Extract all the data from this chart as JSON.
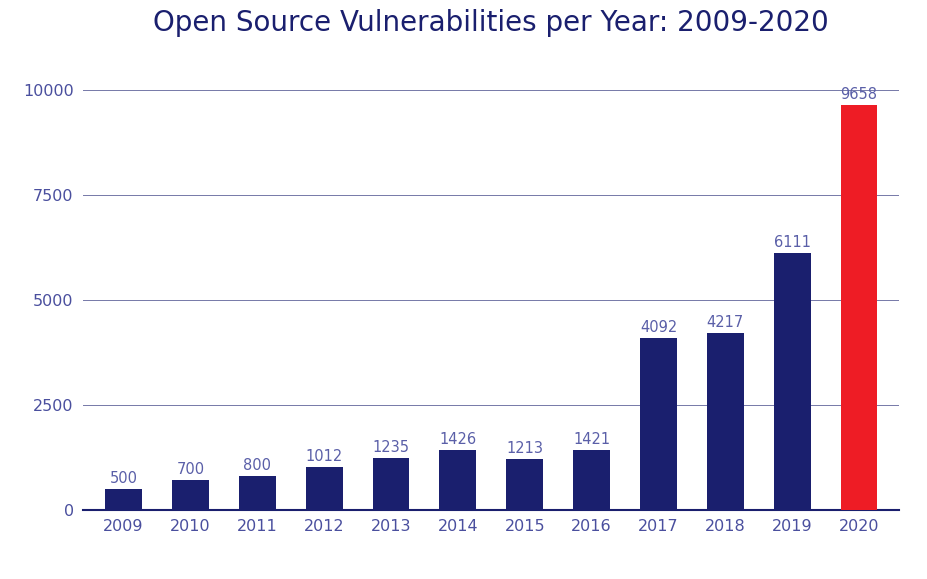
{
  "title": "Open Source Vulnerabilities per Year: 2009-2020",
  "years": [
    "2009",
    "2010",
    "2011",
    "2012",
    "2013",
    "2014",
    "2015",
    "2016",
    "2017",
    "2018",
    "2019",
    "2020"
  ],
  "values": [
    500,
    700,
    800,
    1012,
    1235,
    1426,
    1213,
    1421,
    4092,
    4217,
    6111,
    9658
  ],
  "bar_colors": [
    "#1a1f6e",
    "#1a1f6e",
    "#1a1f6e",
    "#1a1f6e",
    "#1a1f6e",
    "#1a1f6e",
    "#1a1f6e",
    "#1a1f6e",
    "#1a1f6e",
    "#1a1f6e",
    "#1a1f6e",
    "#ee1c25"
  ],
  "title_color": "#1a1f6e",
  "label_color": "#5a5fa8",
  "axis_color": "#1a1f6e",
  "grid_color": "#1a1f6e",
  "tick_color": "#4a4f9e",
  "background_color": "#ffffff",
  "ylim": [
    0,
    10500
  ],
  "yticks": [
    0,
    2500,
    5000,
    7500,
    10000
  ],
  "title_fontsize": 20,
  "label_fontsize": 11.5,
  "bar_label_fontsize": 10.5,
  "bar_width": 0.55
}
